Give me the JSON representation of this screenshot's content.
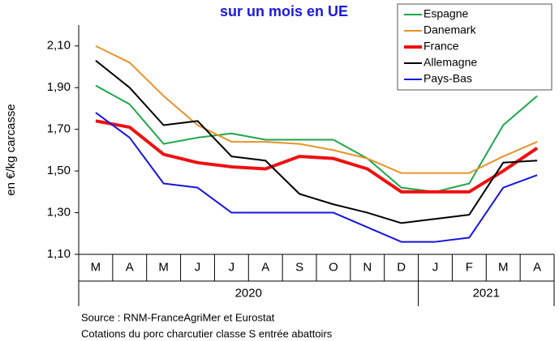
{
  "chart_data": {
    "type": "line",
    "title": "sur un mois en UE",
    "y_label": "en €/kg carcasse",
    "categories": [
      "M",
      "A",
      "M",
      "J",
      "J",
      "A",
      "S",
      "O",
      "N",
      "D",
      "J",
      "F",
      "M",
      "A"
    ],
    "groups": [
      {
        "label": "2020",
        "span": 10
      },
      {
        "label": "2021",
        "span": 4
      }
    ],
    "ylim": [
      1.1,
      2.2
    ],
    "yticks": [
      {
        "value": 1.1,
        "label": "1,10"
      },
      {
        "value": 1.3,
        "label": "1,30"
      },
      {
        "value": 1.5,
        "label": "1,50"
      },
      {
        "value": 1.7,
        "label": "1,70"
      },
      {
        "value": 1.9,
        "label": "1,90"
      },
      {
        "value": 2.1,
        "label": "2,10"
      }
    ],
    "legend": "top-right",
    "series": [
      {
        "name": "Espagne",
        "color": "#1fa64a",
        "width": 2,
        "values": [
          1.91,
          1.82,
          1.63,
          1.66,
          1.68,
          1.65,
          1.65,
          1.65,
          1.56,
          1.42,
          1.4,
          1.44,
          1.72,
          1.86
        ]
      },
      {
        "name": "Danemark",
        "color": "#e8922a",
        "width": 2,
        "values": [
          2.1,
          2.02,
          1.86,
          1.72,
          1.64,
          1.64,
          1.63,
          1.6,
          1.56,
          1.49,
          1.49,
          1.49,
          1.57,
          1.64
        ]
      },
      {
        "name": "France",
        "color": "#ee1111",
        "width": 4,
        "values": [
          1.74,
          1.71,
          1.58,
          1.54,
          1.52,
          1.51,
          1.57,
          1.56,
          1.51,
          1.4,
          1.4,
          1.4,
          1.5,
          1.61
        ]
      },
      {
        "name": "Allemagne",
        "color": "#000000",
        "width": 2,
        "values": [
          2.03,
          1.9,
          1.72,
          1.74,
          1.57,
          1.55,
          1.39,
          1.34,
          1.3,
          1.25,
          1.27,
          1.29,
          1.54,
          1.55
        ]
      },
      {
        "name": "Pays-Bas",
        "color": "#1515e0",
        "width": 2,
        "values": [
          1.78,
          1.66,
          1.44,
          1.42,
          1.3,
          1.3,
          1.3,
          1.3,
          1.23,
          1.16,
          1.16,
          1.18,
          1.42,
          1.48
        ]
      }
    ],
    "notes": [
      "Source : RNM-FranceAgriMer et Eurostat",
      "Cotations du porc charcutier classe S entrée abattoirs"
    ]
  }
}
